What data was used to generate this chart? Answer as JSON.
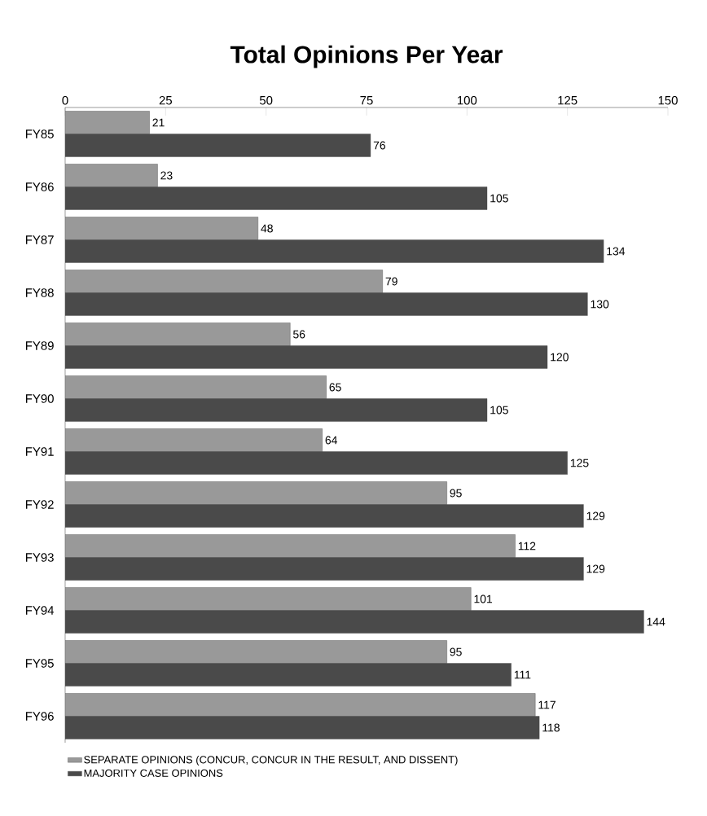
{
  "chart_data": {
    "type": "bar",
    "title": "Total Opinions Per Year",
    "categories": [
      "FY85",
      "FY86",
      "FY87",
      "FY88",
      "FY89",
      "FY90",
      "FY91",
      "FY92",
      "FY93",
      "FY94",
      "FY95",
      "FY96"
    ],
    "series": [
      {
        "name": "SEPARATE OPINIONS (CONCUR, CONCUR IN THE RESULT, AND DISSENT)",
        "color": "#999999",
        "values": [
          21,
          23,
          48,
          79,
          56,
          65,
          64,
          95,
          112,
          101,
          95,
          117
        ]
      },
      {
        "name": "MAJORITY CASE OPINIONS",
        "color": "#4a4a4a",
        "values": [
          76,
          105,
          134,
          130,
          120,
          105,
          125,
          129,
          129,
          144,
          111,
          118
        ]
      }
    ],
    "xlim": [
      0,
      150
    ],
    "xticks": [
      0,
      25,
      50,
      75,
      100,
      125,
      150
    ],
    "orientation": "horizontal",
    "data_labels": true,
    "legend": "bottom"
  }
}
